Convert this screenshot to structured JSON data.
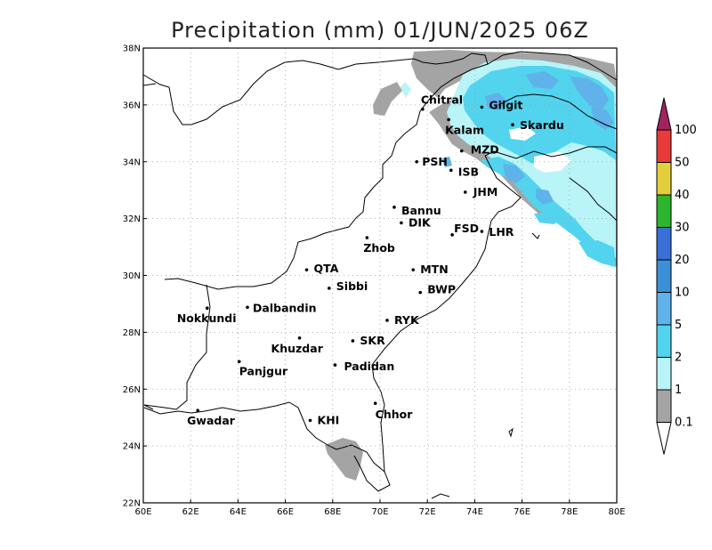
{
  "title": "Precipitation (mm) 01/JUN/2025 06Z",
  "map": {
    "lat_ticks": [
      "38N",
      "36N",
      "34N",
      "32N",
      "30N",
      "28N",
      "26N",
      "24N",
      "22N"
    ],
    "lon_ticks": [
      "60E",
      "62E",
      "64E",
      "66E",
      "68E",
      "70E",
      "72E",
      "74E",
      "76E",
      "78E",
      "80E"
    ],
    "lat_range": [
      22,
      38
    ],
    "lon_range": [
      60,
      80
    ],
    "grid": true,
    "cities": [
      {
        "name": "Chitral",
        "lon": 71.8,
        "lat": 35.85
      },
      {
        "name": "Gilgit",
        "lon": 74.3,
        "lat": 35.92
      },
      {
        "name": "Kalam",
        "lon": 72.9,
        "lat": 35.48
      },
      {
        "name": "Skardu",
        "lon": 75.6,
        "lat": 35.3
      },
      {
        "name": "MZD",
        "lon": 73.45,
        "lat": 34.38
      },
      {
        "name": "PSH",
        "lon": 71.55,
        "lat": 34.0
      },
      {
        "name": "ISB",
        "lon": 73.0,
        "lat": 33.7
      },
      {
        "name": "JHM",
        "lon": 73.6,
        "lat": 32.93
      },
      {
        "name": "Bannu",
        "lon": 70.6,
        "lat": 32.4
      },
      {
        "name": "DIK",
        "lon": 70.9,
        "lat": 31.85
      },
      {
        "name": "FSD",
        "lon": 73.05,
        "lat": 31.43
      },
      {
        "name": "LHR",
        "lon": 74.3,
        "lat": 31.55
      },
      {
        "name": "Zhob",
        "lon": 69.45,
        "lat": 31.33
      },
      {
        "name": "QTA",
        "lon": 66.9,
        "lat": 30.2
      },
      {
        "name": "MTN",
        "lon": 71.4,
        "lat": 30.2
      },
      {
        "name": "Sibbi",
        "lon": 67.85,
        "lat": 29.55
      },
      {
        "name": "BWP",
        "lon": 71.7,
        "lat": 29.4
      },
      {
        "name": "Nokkundi",
        "lon": 62.7,
        "lat": 28.85
      },
      {
        "name": "Dalbandin",
        "lon": 64.4,
        "lat": 28.88
      },
      {
        "name": "RYK",
        "lon": 70.3,
        "lat": 28.42
      },
      {
        "name": "Khuzdar",
        "lon": 66.6,
        "lat": 27.8
      },
      {
        "name": "SKR",
        "lon": 68.85,
        "lat": 27.7
      },
      {
        "name": "Padidan",
        "lon": 68.1,
        "lat": 26.85
      },
      {
        "name": "Panjgur",
        "lon": 64.05,
        "lat": 26.97
      },
      {
        "name": "Chhor",
        "lon": 69.8,
        "lat": 25.5
      },
      {
        "name": "KHI",
        "lon": 67.05,
        "lat": 24.9
      },
      {
        "name": "Gwadar",
        "lon": 62.3,
        "lat": 25.25
      }
    ]
  },
  "legend": {
    "labels": [
      "100",
      "50",
      "40",
      "30",
      "20",
      "10",
      "5",
      "2",
      "1",
      "0.1"
    ],
    "colors": [
      "#a0245f",
      "#e83a3a",
      "#e3cf3c",
      "#2db52d",
      "#3a6fd8",
      "#3b8fd6",
      "#5fb2ea",
      "#52d4ef",
      "#b8f4f8",
      "#a4a4a4"
    ]
  },
  "chart_data": {
    "type": "heatmap",
    "title": "Precipitation (mm) 01/JUN/2025 06Z",
    "variable": "Precipitation",
    "units": "mm",
    "valid_time": "01/JUN/2025 06Z",
    "x_range": [
      60,
      80
    ],
    "y_range": [
      22,
      38
    ],
    "levels": [
      0.1,
      1,
      2,
      5,
      10,
      20,
      30,
      40,
      50,
      100
    ],
    "colors": [
      "#a4a4a4",
      "#b8f4f8",
      "#52d4ef",
      "#5fb2ea",
      "#3b8fd6",
      "#3a6fd8",
      "#2db52d",
      "#e3cf3c",
      "#e83a3a",
      "#a0245f"
    ],
    "regions_observed": [
      {
        "area": "Northern mountains / Gilgit-Baltistan / Kashmir",
        "max_category": "5-10"
      },
      {
        "area": "Chitral / upper Swat",
        "max_category": "0.1-1"
      },
      {
        "area": "Indus delta near Karachi",
        "max_category": "0.1-1"
      }
    ]
  }
}
